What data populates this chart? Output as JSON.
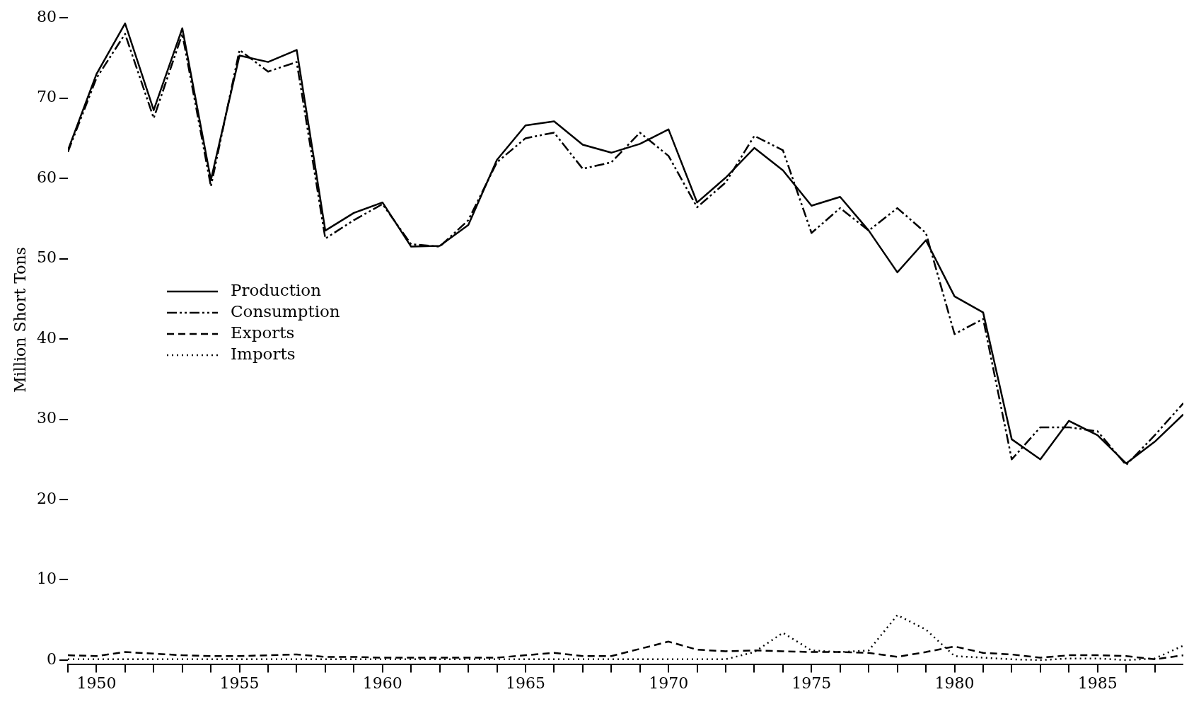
{
  "chart_data": {
    "type": "line",
    "ylabel": "Million Short Tons",
    "x": [
      1949,
      1950,
      1951,
      1952,
      1953,
      1954,
      1955,
      1956,
      1957,
      1958,
      1959,
      1960,
      1961,
      1962,
      1963,
      1964,
      1965,
      1966,
      1967,
      1968,
      1969,
      1970,
      1971,
      1972,
      1973,
      1974,
      1975,
      1976,
      1977,
      1978,
      1979,
      1980,
      1981,
      1982,
      1983,
      1984,
      1985,
      1986,
      1987,
      1988
    ],
    "xlim": [
      1949,
      1988
    ],
    "xticks": [
      {
        "value": 1949,
        "label": null
      },
      1950,
      {
        "value": 1951,
        "label": null
      },
      {
        "value": 1952,
        "label": null
      },
      {
        "value": 1953,
        "label": null
      },
      {
        "value": 1954,
        "label": null
      },
      1955,
      {
        "value": 1956,
        "label": null
      },
      {
        "value": 1957,
        "label": null
      },
      {
        "value": 1958,
        "label": null
      },
      {
        "value": 1959,
        "label": null
      },
      1960,
      {
        "value": 1961,
        "label": null
      },
      {
        "value": 1962,
        "label": null
      },
      {
        "value": 1963,
        "label": null
      },
      {
        "value": 1964,
        "label": null
      },
      1965,
      {
        "value": 1966,
        "label": null
      },
      {
        "value": 1967,
        "label": null
      },
      {
        "value": 1968,
        "label": null
      },
      {
        "value": 1969,
        "label": null
      },
      1970,
      {
        "value": 1971,
        "label": null
      },
      {
        "value": 1972,
        "label": null
      },
      {
        "value": 1973,
        "label": null
      },
      {
        "value": 1974,
        "label": null
      },
      1975,
      {
        "value": 1976,
        "label": null
      },
      {
        "value": 1977,
        "label": null
      },
      {
        "value": 1978,
        "label": null
      },
      {
        "value": 1979,
        "label": null
      },
      1980,
      {
        "value": 1981,
        "label": null
      },
      {
        "value": 1982,
        "label": null
      },
      {
        "value": 1983,
        "label": null
      },
      {
        "value": 1984,
        "label": null
      },
      1985,
      {
        "value": 1986,
        "label": null
      },
      {
        "value": 1987,
        "label": null
      }
    ],
    "ylim": [
      -0.5,
      80
    ],
    "yticks": [
      0,
      10,
      20,
      30,
      40,
      50,
      60,
      70,
      80
    ],
    "grid": false,
    "legend": "left",
    "marker": "none",
    "series": [
      {
        "name": "Production",
        "color": "#000000",
        "line_style": "solid",
        "values": [
          63.5,
          73,
          79.3,
          68.5,
          78.7,
          59.8,
          75.3,
          74.5,
          76,
          53.5,
          55.7,
          57,
          51.5,
          51.6,
          54.2,
          62.3,
          66.6,
          67.1,
          64.2,
          63.2,
          64.3,
          66.1,
          57,
          60.1,
          63.8,
          61,
          56.6,
          57.7,
          53.5,
          48.3,
          52.3,
          45.3,
          43.3,
          27.5,
          25,
          29.8,
          28,
          24.5,
          27.2,
          30.6
        ]
      },
      {
        "name": "Consumption",
        "color": "#000000",
        "line_style": "dashdot",
        "values": [
          63.3,
          72.5,
          78,
          67.5,
          78,
          59,
          76,
          73.3,
          74.5,
          52.5,
          54.8,
          56.8,
          51.8,
          51.5,
          54.8,
          62,
          65,
          65.7,
          61.2,
          62,
          65.7,
          62.8,
          56.4,
          59.5,
          65.3,
          63.5,
          53.2,
          56.3,
          53.5,
          56.3,
          53.2,
          40.6,
          42.5,
          25,
          29,
          29,
          28.5,
          24.3,
          28,
          32
        ]
      },
      {
        "name": "Exports",
        "color": "#000000",
        "line_style": "dashed",
        "values": [
          0.6,
          0.5,
          1.0,
          0.8,
          0.6,
          0.5,
          0.5,
          0.6,
          0.7,
          0.4,
          0.4,
          0.3,
          0.3,
          0.3,
          0.3,
          0.3,
          0.6,
          0.9,
          0.5,
          0.5,
          1.4,
          2.3,
          1.3,
          1.1,
          1.2,
          1.1,
          1.0,
          1.0,
          0.9,
          0.4,
          1.0,
          1.7,
          0.9,
          0.7,
          0.3,
          0.6,
          0.6,
          0.5,
          0.1,
          0.6
        ]
      },
      {
        "name": "Imports",
        "color": "#000000",
        "line_style": "dotted",
        "values": [
          0.1,
          0.1,
          0.1,
          0.1,
          0.1,
          0.1,
          0.1,
          0.1,
          0.1,
          0.1,
          0.1,
          0.1,
          0.1,
          0.1,
          0.1,
          0.1,
          0.1,
          0.1,
          0.1,
          0.1,
          0.1,
          0.1,
          0.1,
          0.1,
          1.0,
          3.4,
          1.2,
          1.0,
          1.2,
          5.6,
          3.8,
          0.5,
          0.3,
          0.1,
          0,
          0.2,
          0.2,
          0,
          0.2,
          1.8
        ]
      }
    ]
  }
}
